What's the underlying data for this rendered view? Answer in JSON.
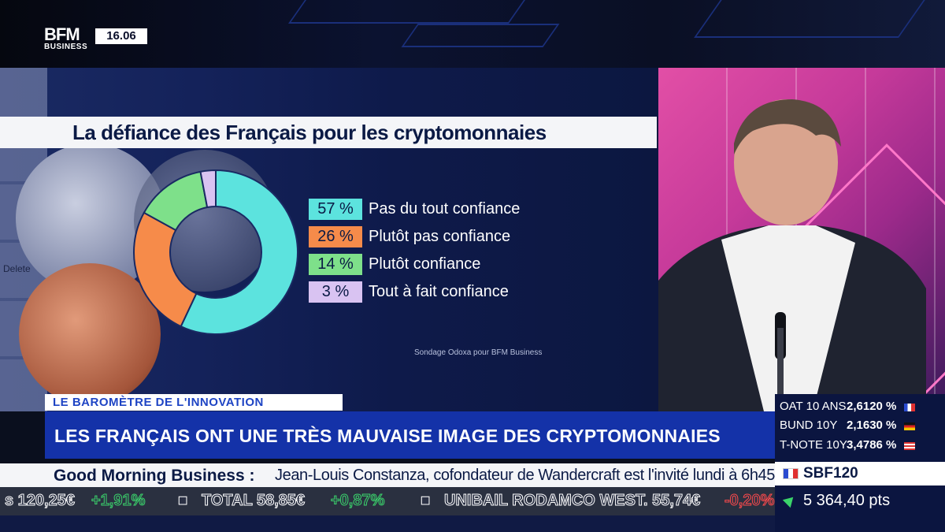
{
  "channel": {
    "logo_top": "BFM",
    "logo_bottom": "BUSINESS",
    "time": "16.06"
  },
  "chart_data": {
    "type": "pie",
    "title": "La défiance des Français pour les cryptomonnaies",
    "source": "Sondage Odoxa pour BFM Business",
    "slices": [
      {
        "value": 57,
        "label": "57 %",
        "name": "Pas du tout confiance",
        "color": "#5ce3de"
      },
      {
        "value": 26,
        "label": "26 %",
        "name": "Plutôt pas confiance",
        "color": "#f68b4a"
      },
      {
        "value": 14,
        "label": "14 %",
        "name": "Plutôt confiance",
        "color": "#7ee08a"
      },
      {
        "value": 3,
        "label": "3 %",
        "name": "Tout à fait confiance",
        "color": "#d9c3f2"
      }
    ]
  },
  "studio": {
    "keyboard_key": "Delete"
  },
  "lower_third": {
    "kicker": "LE BAROMÈTRE DE L'INNOVATION",
    "headline": "LES FRANÇAIS ONT UNE TRÈS MAUVAISE IMAGE DES CRYPTOMONNAIES"
  },
  "ticker": {
    "show": "Good Morning Business :",
    "info": "Jean-Louis Constanza, cofondateur de Wandercraft est l'invité lundi à 6h45."
  },
  "stocks": [
    {
      "text": "s 120,25€",
      "trend": "neutral"
    },
    {
      "text": "+1,91%",
      "trend": "up"
    },
    {
      "text": "TOTAL 58,85€",
      "trend": "neutral"
    },
    {
      "text": "+0,87%",
      "trend": "up"
    },
    {
      "text": "UNIBAIL RODAMCO WEST. 55,74€",
      "trend": "neutral"
    },
    {
      "text": "-0,20%",
      "trend": "down"
    }
  ],
  "markets": {
    "rates": [
      {
        "name": "OAT 10 ANS",
        "value": "2,6120 %",
        "flag": "fr"
      },
      {
        "name": "BUND 10Y",
        "value": "2,1630 %",
        "flag": "de"
      },
      {
        "name": "T-NOTE 10Y",
        "value": "3,4786 %",
        "flag": "us"
      }
    ],
    "index_name": "SBF120",
    "index_value": "5 364,40 pts"
  }
}
